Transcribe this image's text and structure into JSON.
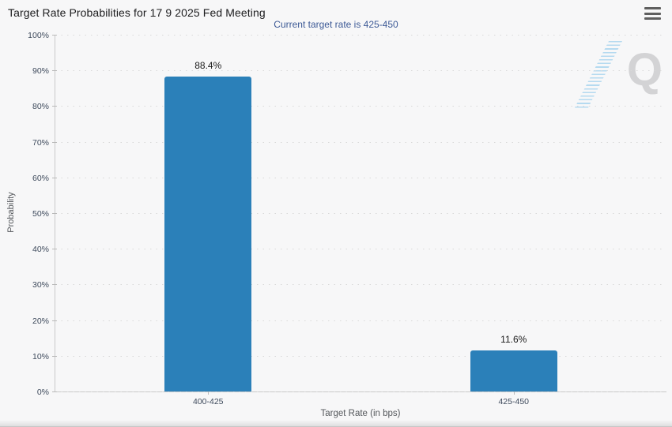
{
  "header": {
    "title": "Target Rate Probabilities for 17 9 2025 Fed Meeting"
  },
  "chart_data": {
    "type": "bar",
    "title": "Target Rate Probabilities for 17 9 2025 Fed Meeting",
    "subtitle": "Current target rate is 425-450",
    "categories": [
      "400-425",
      "425-450"
    ],
    "values": [
      88.4,
      11.6
    ],
    "value_labels": [
      "88.4%",
      "11.6%"
    ],
    "xlabel": "Target Rate (in bps)",
    "ylabel": "Probability",
    "ylim": [
      0,
      100
    ],
    "ytick_step": 10,
    "ytick_labels": [
      "0%",
      "10%",
      "20%",
      "30%",
      "40%",
      "50%",
      "60%",
      "70%",
      "80%",
      "90%",
      "100%"
    ],
    "grid": "dotted-horizontal",
    "legend": "none",
    "bar_color": "#2b80b9",
    "subtitle_color": "#3d5a96",
    "tick_label_color": "#3e4a5c"
  },
  "watermark": {
    "letter": "Q"
  }
}
